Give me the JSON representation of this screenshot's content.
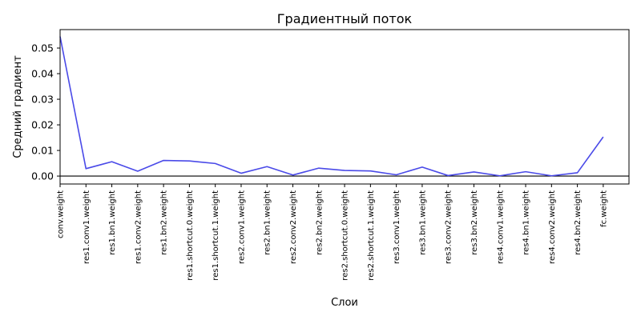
{
  "chart_data": {
    "type": "line",
    "title": "Градиентный поток",
    "xlabel": "Слои",
    "ylabel": "Средний градиент",
    "categories": [
      "conv.weight",
      "res1.conv1.weight",
      "res1.bn1.weight",
      "res1.conv2.weight",
      "res1.bn2.weight",
      "res1.shortcut.0.weight",
      "res1.shortcut.1.weight",
      "res2.conv1.weight",
      "res2.bn1.weight",
      "res2.conv2.weight",
      "res2.bn2.weight",
      "res2.shortcut.0.weight",
      "res2.shortcut.1.weight",
      "res3.conv1.weight",
      "res3.bn1.weight",
      "res3.conv2.weight",
      "res3.bn2.weight",
      "res4.conv1.weight",
      "res4.bn1.weight",
      "res4.conv2.weight",
      "res4.bn2.weight",
      "fc.weight"
    ],
    "series": [
      {
        "values": [
          0.0545,
          0.0029,
          0.0056,
          0.0019,
          0.0061,
          0.0059,
          0.0049,
          0.0011,
          0.0037,
          0.0004,
          0.0031,
          0.0022,
          0.002,
          0.0005,
          0.0035,
          0.0002,
          0.0016,
          0.0001,
          0.0017,
          0.0001,
          0.0013,
          0.0153
        ],
        "color": "#4a4ae8"
      }
    ],
    "yticks": [
      0.0,
      0.01,
      0.02,
      0.03,
      0.04,
      0.05
    ],
    "ytick_labels": [
      "0.00",
      "0.01",
      "0.02",
      "0.03",
      "0.04",
      "0.05"
    ],
    "ylim": [
      -0.0031,
      0.0572
    ],
    "hline": 0,
    "grid": false,
    "legend": "none"
  }
}
